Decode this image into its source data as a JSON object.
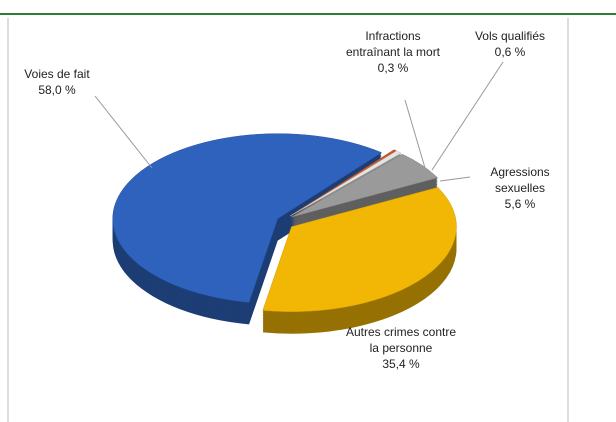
{
  "chart_data": {
    "type": "pie",
    "categories": [
      "Voies de fait",
      "Infractions entraînant la mort",
      "Vols qualifiés",
      "Agressions sexuelles",
      "Autres crimes contre la personne"
    ],
    "values": [
      58.0,
      0.3,
      0.6,
      5.6,
      35.4
    ],
    "value_labels": [
      "58,0 %",
      "0,3 %",
      "0,6 %",
      "5,6 %",
      "35,4 %"
    ],
    "colors": [
      "#2f62bd",
      "#c8582a",
      "#e4e4e4",
      "#9a9a9a",
      "#f2b705"
    ]
  }
}
